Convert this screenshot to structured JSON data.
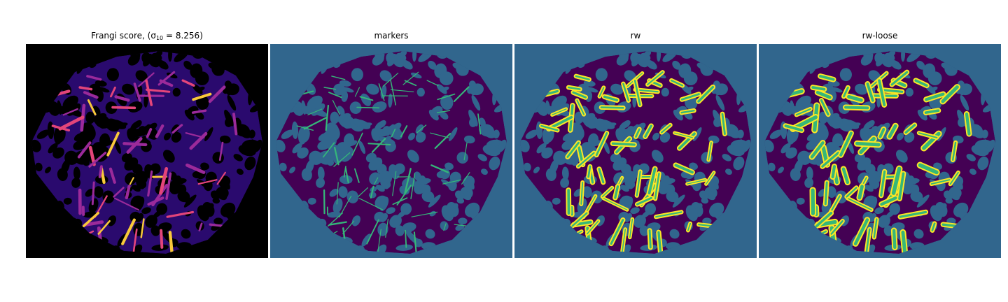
{
  "figure": {
    "panels": [
      {
        "title": "Frangi score, (σ",
        "title_sub": "10",
        "title_rest": " = 8.256)",
        "colormap": "magma-like",
        "background": "#000000"
      },
      {
        "title": "markers",
        "background": "#31668d",
        "fill": "#440154",
        "highlight": "#35b779"
      },
      {
        "title": "rw",
        "background": "#31668d",
        "fill": "#440154",
        "highlight": "#35b779",
        "outline": "#fde725"
      },
      {
        "title": "rw-loose",
        "background": "#31668d",
        "fill": "#440154",
        "highlight": "#35b779",
        "outline": "#fde725"
      }
    ]
  }
}
